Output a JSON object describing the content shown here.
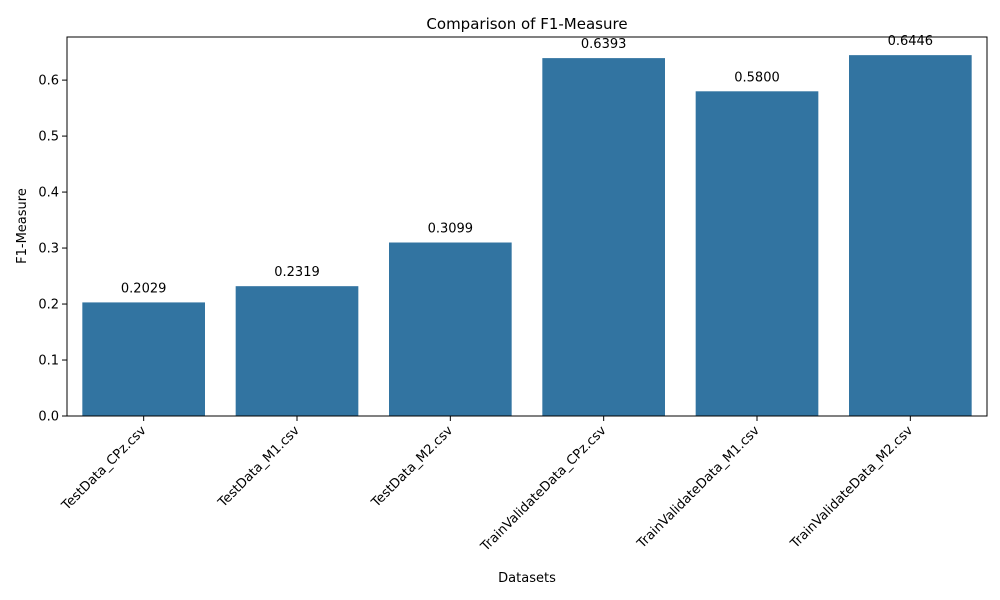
{
  "chart_data": {
    "type": "bar",
    "title": "Comparison of F1-Measure",
    "xlabel": "Datasets",
    "ylabel": "F1-Measure",
    "categories": [
      "TestData_CPz.csv",
      "TestData_M1.csv",
      "TestData_M2.csv",
      "TrainValidateData_CPz.csv",
      "TrainValidateData_M1.csv",
      "TrainValidateData_M2.csv"
    ],
    "values": [
      0.2029,
      0.2319,
      0.3099,
      0.6393,
      0.58,
      0.6446
    ],
    "data_labels": [
      "0.2029",
      "0.2319",
      "0.3099",
      "0.6393",
      "0.5800",
      "0.6446"
    ],
    "ylim": [
      0,
      0.677
    ],
    "yticks": [
      0.0,
      0.1,
      0.2,
      0.3,
      0.4,
      0.5,
      0.6
    ],
    "ytick_labels": [
      "0.0",
      "0.1",
      "0.2",
      "0.3",
      "0.4",
      "0.5",
      "0.6"
    ],
    "bar_color": "#3274a1",
    "grid": false,
    "legend": "none"
  }
}
